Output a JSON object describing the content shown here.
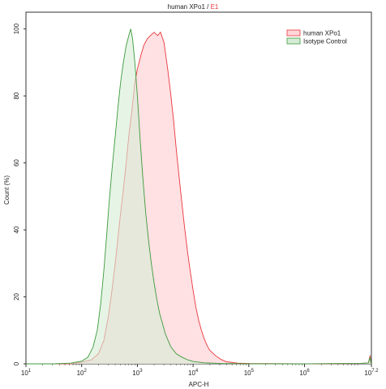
{
  "chart_data": {
    "type": "area",
    "title_main": "human XPo1 / ",
    "title_accent": "E1",
    "xlabel": "APC-H",
    "ylabel": "Count (%)",
    "x_scale": "log",
    "xlim": [
      10,
      15848932
    ],
    "ylim": [
      0,
      105
    ],
    "y_ticks": [
      0,
      20,
      40,
      60,
      80,
      100
    ],
    "x_ticks": [
      {
        "value": 10,
        "base": "10",
        "exp": "1"
      },
      {
        "value": 100,
        "base": "10",
        "exp": "2"
      },
      {
        "value": 1000,
        "base": "10",
        "exp": "3"
      },
      {
        "value": 10000,
        "base": "10",
        "exp": "4"
      },
      {
        "value": 100000,
        "base": "10",
        "exp": "5"
      },
      {
        "value": 1000000,
        "base": "10",
        "exp": "6"
      },
      {
        "value": 15848932,
        "base": "10",
        "exp": "7.2"
      }
    ],
    "legend_position": "top-right",
    "series": [
      {
        "name": "human XPo1",
        "stroke": "#e8383d",
        "fill": "#ffd6da",
        "points": [
          [
            10,
            0
          ],
          [
            31,
            0
          ],
          [
            63,
            0
          ],
          [
            100,
            0.5
          ],
          [
            150,
            1.2
          ],
          [
            200,
            3
          ],
          [
            250,
            7
          ],
          [
            300,
            14
          ],
          [
            350,
            22
          ],
          [
            400,
            30
          ],
          [
            450,
            38
          ],
          [
            500,
            45
          ],
          [
            560,
            52
          ],
          [
            630,
            60
          ],
          [
            700,
            68
          ],
          [
            800,
            76
          ],
          [
            900,
            84
          ],
          [
            1000,
            88
          ],
          [
            1150,
            92
          ],
          [
            1300,
            95
          ],
          [
            1500,
            97
          ],
          [
            1700,
            98
          ],
          [
            2000,
            99
          ],
          [
            2300,
            98
          ],
          [
            2600,
            99
          ],
          [
            3000,
            96
          ],
          [
            3500,
            88
          ],
          [
            4000,
            80
          ],
          [
            4500,
            72
          ],
          [
            5000,
            64
          ],
          [
            5600,
            56
          ],
          [
            6300,
            48
          ],
          [
            7000,
            41
          ],
          [
            8000,
            33
          ],
          [
            9000,
            27
          ],
          [
            10000,
            22
          ],
          [
            11200,
            17
          ],
          [
            12600,
            13
          ],
          [
            14100,
            10
          ],
          [
            15800,
            7.5
          ],
          [
            17800,
            5.5
          ],
          [
            20000,
            4
          ],
          [
            25000,
            2.5
          ],
          [
            31600,
            1.3
          ],
          [
            40000,
            0.6
          ],
          [
            63000,
            0.2
          ],
          [
            100000,
            0.1
          ],
          [
            1000000,
            0
          ],
          [
            10000000,
            0.1
          ],
          [
            14000000,
            0.3
          ],
          [
            15000000,
            2.5
          ],
          [
            15500000,
            0.5
          ],
          [
            15848932,
            0
          ]
        ]
      },
      {
        "name": "Isotype Control",
        "stroke": "#3c9a3c",
        "fill": "#d6ecd6",
        "points": [
          [
            10,
            0
          ],
          [
            31,
            0
          ],
          [
            63,
            0.2
          ],
          [
            100,
            0.8
          ],
          [
            130,
            2
          ],
          [
            160,
            5
          ],
          [
            190,
            10
          ],
          [
            220,
            18
          ],
          [
            250,
            28
          ],
          [
            280,
            38
          ],
          [
            310,
            48
          ],
          [
            350,
            58
          ],
          [
            400,
            68
          ],
          [
            450,
            77
          ],
          [
            500,
            84
          ],
          [
            560,
            90
          ],
          [
            630,
            95
          ],
          [
            700,
            98
          ],
          [
            760,
            100
          ],
          [
            820,
            97
          ],
          [
            900,
            90
          ],
          [
            1000,
            80
          ],
          [
            1120,
            67
          ],
          [
            1260,
            55
          ],
          [
            1410,
            45
          ],
          [
            1580,
            37
          ],
          [
            1780,
            30
          ],
          [
            2000,
            24
          ],
          [
            2240,
            19
          ],
          [
            2510,
            15
          ],
          [
            2820,
            12
          ],
          [
            3160,
            9
          ],
          [
            3550,
            7
          ],
          [
            4000,
            5
          ],
          [
            5000,
            3
          ],
          [
            6300,
            2
          ],
          [
            8000,
            1.2
          ],
          [
            10000,
            0.7
          ],
          [
            15800,
            0.3
          ],
          [
            31600,
            0.1
          ],
          [
            100000,
            0
          ],
          [
            1000000,
            0
          ],
          [
            10000000,
            0.1
          ],
          [
            14000000,
            0.3
          ],
          [
            15000000,
            2
          ],
          [
            15500000,
            0.4
          ],
          [
            15848932,
            0
          ]
        ]
      }
    ]
  }
}
